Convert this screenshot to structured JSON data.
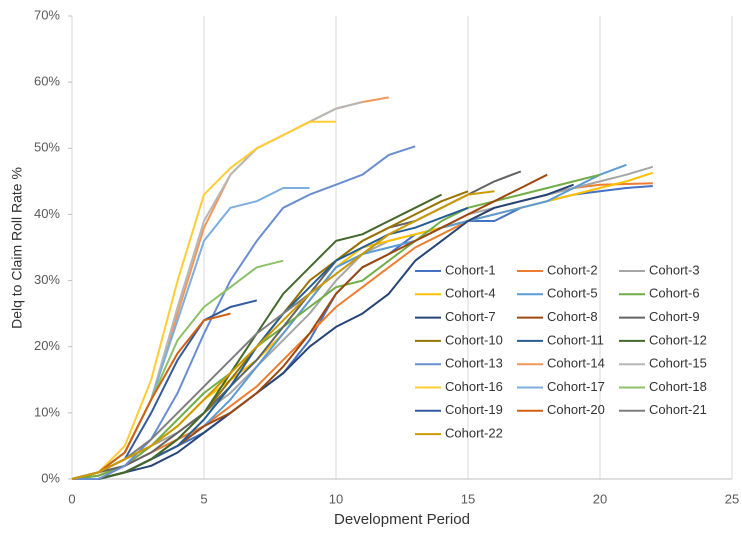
{
  "chart_data": {
    "type": "line",
    "x": [
      0,
      1,
      2,
      3,
      4,
      5,
      6,
      7,
      8,
      9,
      10,
      11,
      12,
      13,
      14,
      15,
      16,
      17,
      18,
      19,
      20,
      21,
      22
    ],
    "series": [
      {
        "name": "Cohort-1",
        "color": "#4472C4",
        "values": [
          0,
          0,
          1,
          3,
          5,
          7,
          10,
          13,
          16,
          21,
          28,
          32,
          34,
          37,
          38,
          39,
          39,
          41,
          42,
          43,
          43.5,
          44,
          44.3
        ]
      },
      {
        "name": "Cohort-2",
        "color": "#ED7D31",
        "values": [
          0,
          0.5,
          2,
          4,
          6,
          8,
          11,
          14,
          18,
          22,
          26,
          29,
          32,
          35,
          37,
          39,
          41,
          42,
          43,
          44,
          44.5,
          44.6,
          44.7
        ]
      },
      {
        "name": "Cohort-3",
        "color": "#A5A5A5",
        "values": [
          0,
          1,
          3,
          5,
          7,
          10,
          13,
          17,
          21,
          25,
          30,
          34,
          36,
          37,
          38,
          40,
          41,
          42,
          43,
          44,
          45,
          46,
          47.2
        ]
      },
      {
        "name": "Cohort-4",
        "color": "#FFC000",
        "values": [
          0,
          1,
          3,
          5,
          8,
          12,
          15,
          18,
          22,
          27,
          32,
          35,
          36,
          37,
          38,
          39,
          40,
          41,
          42,
          43,
          44,
          45,
          46.3
        ]
      },
      {
        "name": "Cohort-5",
        "color": "#5B9BD5",
        "values": [
          0,
          0,
          1,
          3,
          5,
          8,
          12,
          17,
          22,
          27,
          32,
          34,
          35,
          36,
          38,
          39,
          40,
          41,
          42,
          44,
          46,
          47.5,
          null
        ]
      },
      {
        "name": "Cohort-6",
        "color": "#70AD47",
        "values": [
          0,
          0.5,
          2,
          5,
          9,
          13,
          16,
          20,
          23,
          26,
          29,
          30,
          33,
          36,
          39,
          41,
          42,
          43,
          44,
          45,
          46,
          null,
          null
        ]
      },
      {
        "name": "Cohort-7",
        "color": "#264478",
        "values": [
          0,
          0,
          1,
          2,
          4,
          7,
          10,
          13,
          16,
          20,
          23,
          25,
          28,
          33,
          36,
          39,
          41,
          42,
          43,
          44.5,
          null,
          null,
          null
        ]
      },
      {
        "name": "Cohort-8",
        "color": "#9E480E",
        "values": [
          0,
          0,
          1,
          3,
          5,
          8,
          10,
          13,
          17,
          22,
          28,
          32,
          34,
          36,
          38,
          40,
          42,
          44,
          46,
          null,
          null,
          null,
          null
        ]
      },
      {
        "name": "Cohort-9",
        "color": "#636363",
        "values": [
          0,
          1,
          2,
          4,
          7,
          10,
          14,
          18,
          23,
          28,
          33,
          36,
          38,
          39,
          41,
          43,
          45,
          46.5,
          null,
          null,
          null,
          null,
          null
        ]
      },
      {
        "name": "Cohort-10",
        "color": "#997300",
        "values": [
          0,
          0,
          1,
          3,
          6,
          10,
          15,
          20,
          25,
          30,
          33,
          36,
          38,
          40,
          42,
          43.5,
          null,
          null,
          null,
          null,
          null,
          null,
          null
        ]
      },
      {
        "name": "Cohort-11",
        "color": "#255E91",
        "values": [
          0,
          0,
          1,
          3,
          5,
          9,
          14,
          20,
          25,
          29,
          33,
          35,
          37,
          38,
          39.5,
          41,
          null,
          null,
          null,
          null,
          null,
          null,
          null
        ]
      },
      {
        "name": "Cohort-12",
        "color": "#43682B",
        "values": [
          0,
          0,
          1,
          3,
          6,
          10,
          16,
          22,
          28,
          32,
          36,
          37,
          39,
          41,
          43,
          null,
          null,
          null,
          null,
          null,
          null,
          null,
          null
        ]
      },
      {
        "name": "Cohort-13",
        "color": "#698ED0",
        "values": [
          0,
          0,
          2,
          6,
          13,
          22,
          30,
          36,
          41,
          43,
          44.5,
          46,
          49,
          50.3,
          null,
          null,
          null,
          null,
          null,
          null,
          null,
          null,
          null
        ]
      },
      {
        "name": "Cohort-14",
        "color": "#F1975A",
        "values": [
          0,
          1,
          4,
          12,
          25,
          38,
          46,
          50,
          52,
          54,
          56,
          57,
          57.7,
          null,
          null,
          null,
          null,
          null,
          null,
          null,
          null,
          null,
          null
        ]
      },
      {
        "name": "Cohort-15",
        "color": "#B7B7B7",
        "values": [
          0,
          1,
          4,
          12,
          26,
          39,
          46,
          50,
          52,
          54,
          56,
          57,
          null,
          null,
          null,
          null,
          null,
          null,
          null,
          null,
          null,
          null,
          null
        ]
      },
      {
        "name": "Cohort-16",
        "color": "#FFCD33",
        "values": [
          0,
          1,
          5,
          15,
          30,
          43,
          47,
          50,
          52,
          54,
          54,
          null,
          null,
          null,
          null,
          null,
          null,
          null,
          null,
          null,
          null,
          null,
          null
        ]
      },
      {
        "name": "Cohort-17",
        "color": "#7CAFDD",
        "values": [
          0,
          1,
          4,
          12,
          24,
          36,
          41,
          42,
          44,
          44,
          null,
          null,
          null,
          null,
          null,
          null,
          null,
          null,
          null,
          null,
          null,
          null,
          null
        ]
      },
      {
        "name": "Cohort-18",
        "color": "#8CC168",
        "values": [
          0,
          1,
          4,
          12,
          21,
          26,
          29,
          32,
          33,
          null,
          null,
          null,
          null,
          null,
          null,
          null,
          null,
          null,
          null,
          null,
          null,
          null,
          null
        ]
      },
      {
        "name": "Cohort-19",
        "color": "#335AA1",
        "values": [
          0,
          1,
          3,
          10,
          18,
          24,
          26,
          27,
          null,
          null,
          null,
          null,
          null,
          null,
          null,
          null,
          null,
          null,
          null,
          null,
          null,
          null,
          null
        ]
      },
      {
        "name": "Cohort-20",
        "color": "#D26012",
        "values": [
          0,
          1,
          4,
          12,
          19,
          24,
          25,
          null,
          null,
          null,
          null,
          null,
          null,
          null,
          null,
          null,
          null,
          null,
          null,
          null,
          null,
          null,
          null
        ]
      },
      {
        "name": "Cohort-21",
        "color": "#7E7E7E",
        "values": [
          0,
          1,
          3,
          6,
          10,
          14,
          18,
          22,
          25,
          28,
          31,
          34,
          37,
          null,
          null,
          null,
          null,
          null,
          null,
          null,
          null,
          null,
          null
        ]
      },
      {
        "name": "Cohort-22",
        "color": "#CC9A00",
        "values": [
          0,
          1,
          3,
          5,
          8,
          12,
          16,
          20,
          24,
          28,
          31,
          34,
          37,
          39,
          41,
          43,
          43.5,
          null,
          null,
          null,
          null,
          null,
          null
        ]
      }
    ],
    "x_label": "Development Period",
    "y_label": "Delq to Claim Roll Rate %",
    "xlim": [
      0,
      25
    ],
    "xticks": [
      0,
      5,
      10,
      15,
      20,
      25
    ],
    "ylim": [
      0,
      70
    ],
    "yticks": [
      {
        "value": 0,
        "label": "0%"
      },
      {
        "value": 10,
        "label": "10%"
      },
      {
        "value": 20,
        "label": "20%"
      },
      {
        "value": 30,
        "label": "30%"
      },
      {
        "value": 40,
        "label": "40%"
      },
      {
        "value": 50,
        "label": "50%"
      },
      {
        "value": 60,
        "label": "60%"
      },
      {
        "value": 70,
        "label": "70%"
      }
    ],
    "grid": true
  }
}
